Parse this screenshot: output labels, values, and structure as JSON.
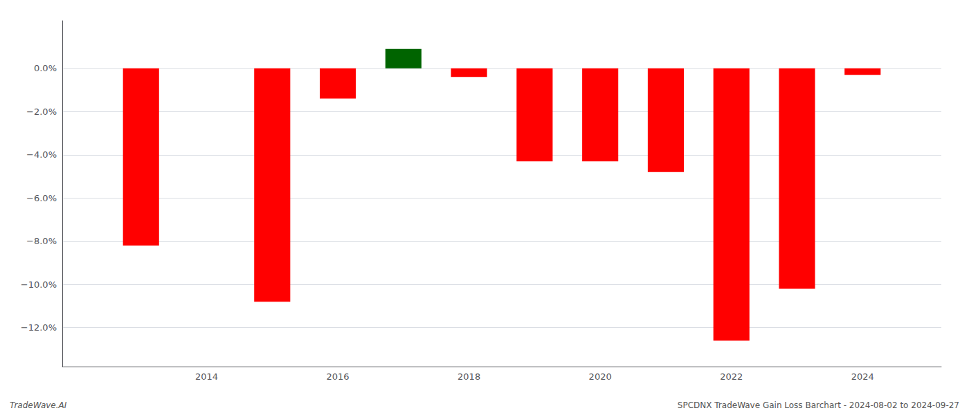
{
  "chart_data": {
    "type": "bar",
    "x": [
      2013,
      2015,
      2016,
      2017,
      2018,
      2019,
      2020,
      2021,
      2022,
      2023,
      2024
    ],
    "values": [
      -0.082,
      -0.108,
      -0.014,
      0.009,
      -0.004,
      -0.043,
      -0.043,
      -0.048,
      -0.126,
      -0.102,
      -0.003
    ],
    "colors": [
      "#ff0000",
      "#ff0000",
      "#ff0000",
      "#006400",
      "#ff0000",
      "#ff0000",
      "#ff0000",
      "#ff0000",
      "#ff0000",
      "#ff0000",
      "#ff0000"
    ],
    "xlim": [
      2011.8,
      2025.2
    ],
    "xticks": [
      2014,
      2016,
      2018,
      2020,
      2022,
      2024
    ],
    "ylim": [
      -0.138,
      0.022
    ],
    "yticks": [
      {
        "value": 0.0,
        "label": "0.0%"
      },
      {
        "value": -0.02,
        "label": "−2.0%"
      },
      {
        "value": -0.04,
        "label": "−4.0%"
      },
      {
        "value": -0.06,
        "label": "−6.0%"
      },
      {
        "value": -0.08,
        "label": "−8.0%"
      },
      {
        "value": -0.1,
        "label": "−10.0%"
      },
      {
        "value": -0.12,
        "label": "−12.0%"
      }
    ],
    "grid": true,
    "annotations": [
      "TradeWave.AI",
      "SPCDNX TradeWave Gain Loss Barchart - 2024-08-02 to 2024-09-27"
    ]
  }
}
